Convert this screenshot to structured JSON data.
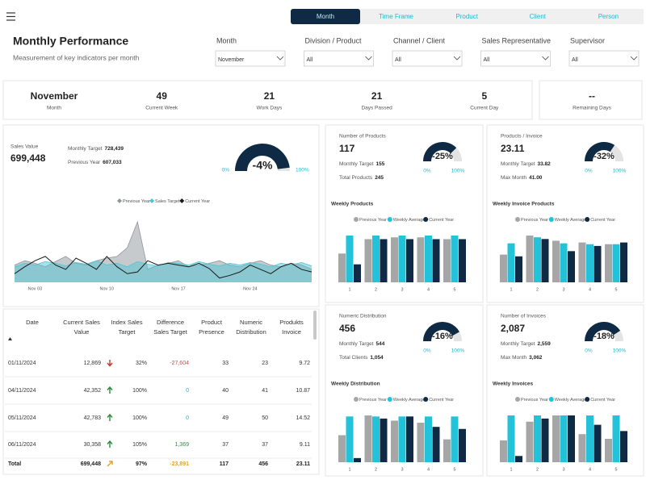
{
  "tabs": {
    "items": [
      "Month",
      "Time Frame",
      "Product",
      "Client",
      "Person"
    ],
    "active": 0
  },
  "header": {
    "title": "Monthly Performance",
    "subtitle": "Measurement of key indicators per month"
  },
  "filters": [
    {
      "label": "Month",
      "value": "November"
    },
    {
      "label": "Division / Product",
      "value": "All"
    },
    {
      "label": "Channel / Client",
      "value": "All"
    },
    {
      "label": "Sales Representative",
      "value": "All"
    },
    {
      "label": "Supervisor",
      "value": "All"
    }
  ],
  "kpis": [
    {
      "value": "November",
      "label": "Month"
    },
    {
      "value": 49,
      "label": "Current Week"
    },
    {
      "value": 21,
      "label": "Work Days"
    },
    {
      "value": 21,
      "label": "Days Passed"
    },
    {
      "value": 5,
      "label": "Current Day"
    },
    {
      "value": "--",
      "label": "Remaining Days"
    }
  ],
  "sales": {
    "label": "Sales Value",
    "value": {
      "value": 699448,
      "label": "699,448"
    },
    "target_label": "Monthly Target",
    "target": {
      "value": 728439,
      "label": "728,439"
    },
    "previous_label": "Previous Year",
    "previous": {
      "value": 607033,
      "label": "607,033"
    },
    "gauge": {
      "delta": "-4%",
      "min": "0%",
      "max": "100%"
    },
    "chart": {
      "type": "line",
      "categories": [
        null,
        null,
        "Nov 03",
        null,
        null,
        null,
        null,
        null,
        null,
        "Nov 10",
        null,
        null,
        null,
        null,
        null,
        null,
        "Nov 17",
        null,
        null,
        null,
        null,
        null,
        null,
        "Nov 24",
        null,
        null,
        null,
        null,
        null,
        null
      ],
      "series": [
        {
          "name": "Previous Year",
          "color": "#8f969c",
          "kind": "area",
          "values": [
            20,
            25,
            22,
            18,
            24,
            30,
            22,
            20,
            25,
            28,
            30,
            40,
            70,
            15,
            20,
            22,
            25,
            18,
            20,
            22,
            25,
            20,
            18,
            22,
            25,
            20,
            18,
            22,
            20,
            15
          ]
        },
        {
          "name": "Sales Target",
          "color": "#4fc3d3",
          "kind": "area",
          "values": [
            18,
            22,
            20,
            24,
            22,
            19,
            23,
            21,
            25,
            20,
            22,
            18,
            24,
            21,
            19,
            23,
            22,
            20,
            24,
            21,
            19,
            22,
            20,
            23,
            21,
            18,
            22,
            20,
            23,
            19
          ]
        },
        {
          "name": "Current Year",
          "color": "#1a1a1a",
          "kind": "line",
          "values": [
            10,
            18,
            25,
            30,
            20,
            15,
            28,
            22,
            15,
            30,
            18,
            10,
            12,
            25,
            20,
            22,
            20,
            18,
            22,
            16,
            5,
            8,
            12,
            20,
            15,
            10,
            18,
            22,
            15,
            12
          ]
        }
      ]
    }
  },
  "cards": [
    {
      "title": "Number of Products",
      "value": 117,
      "target_label": "Monthly Target",
      "target": 155,
      "extra_label": "Total Products",
      "extra": 245,
      "gauge": {
        "delta": "-25%",
        "min": "0%",
        "max": "100%"
      },
      "chart": {
        "type": "bar",
        "title": "Weekly Products",
        "categories": [
          1,
          2,
          3,
          4,
          5
        ],
        "series": [
          {
            "name": "Previous Year",
            "color": "#a6a6a6",
            "values": [
              32,
              48,
              50,
              50,
              48
            ]
          },
          {
            "name": "Weekly Average",
            "color": "#22c3d8",
            "values": [
              52,
              52,
              52,
              52,
              52
            ]
          },
          {
            "name": "Current Year",
            "color": "#0f2a44",
            "values": [
              20,
              48,
              48,
              48,
              48
            ]
          }
        ]
      }
    },
    {
      "title": "Products / Invoice",
      "value": 23.11,
      "target_label": "Monthly Target",
      "target": 33.82,
      "extra_label": "Max Month",
      "extra": {
        "value": 41,
        "label": "41.00"
      },
      "gauge": {
        "delta": "-32%",
        "min": "0%",
        "max": "100%"
      },
      "chart": {
        "type": "bar",
        "title": "Weekly Invoice Products",
        "categories": [
          1,
          2,
          3,
          4,
          5
        ],
        "series": [
          {
            "name": "Previous Year",
            "color": "#a6a6a6",
            "values": [
              32,
              54,
              48,
              46,
              44
            ]
          },
          {
            "name": "Weekly Average",
            "color": "#22c3d8",
            "values": [
              45,
              52,
              45,
              44,
              44
            ]
          },
          {
            "name": "Current Year",
            "color": "#0f2a44",
            "values": [
              30,
              50,
              36,
              42,
              46
            ]
          }
        ]
      }
    },
    {
      "title": "Numeric Distribution",
      "value": 456,
      "target_label": "Monthly Target",
      "target": 544,
      "extra_label": "Total Clients",
      "extra": {
        "value": 1054,
        "label": "1,054"
      },
      "gauge": {
        "delta": "-16%",
        "min": "0%",
        "max": "100%"
      },
      "chart": {
        "type": "bar",
        "title": "Weekly Distribution",
        "categories": [
          1,
          2,
          3,
          4,
          5
        ],
        "series": [
          {
            "name": "Previous Year",
            "color": "#a6a6a6",
            "values": [
              26,
              45,
              40,
              38,
              22
            ]
          },
          {
            "name": "Weekly Average",
            "color": "#22c3d8",
            "values": [
              44,
              44,
              44,
              44,
              44
            ]
          },
          {
            "name": "Current Year",
            "color": "#0f2a44",
            "values": [
              4,
              42,
              44,
              34,
              32
            ]
          }
        ]
      }
    },
    {
      "title": "Number of Invoices",
      "value": {
        "value": 2087,
        "label": "2,087"
      },
      "target_label": "Monthly Target",
      "target": {
        "value": 2559,
        "label": "2,559"
      },
      "extra_label": "Max Month",
      "extra": {
        "value": 3062,
        "label": "3,062"
      },
      "gauge": {
        "delta": "-18%",
        "min": "0%",
        "max": "100%"
      },
      "chart": {
        "type": "bar",
        "title": "Weekly Invoices",
        "categories": [
          1,
          2,
          3,
          4,
          5
        ],
        "series": [
          {
            "name": "Previous Year",
            "color": "#a6a6a6",
            "values": [
              28,
              52,
              60,
              36,
              30
            ]
          },
          {
            "name": "Weekly Average",
            "color": "#22c3d8",
            "values": [
              60,
              60,
              60,
              60,
              60
            ]
          },
          {
            "name": "Current Year",
            "color": "#0f2a44",
            "values": [
              8,
              56,
              60,
              48,
              40
            ]
          }
        ]
      }
    }
  ],
  "table": {
    "columns": [
      [
        "Date"
      ],
      [
        "Current Sales",
        "Value"
      ],
      [
        "Index Sales",
        "Target"
      ],
      [
        "Difference",
        "Sales Target"
      ],
      [
        "Product",
        "Presence"
      ],
      [
        "Numeric",
        "Distribution"
      ],
      [
        "Produkts",
        "Invoice"
      ]
    ],
    "rows": [
      [
        "01/11/2024",
        "12,869",
        "32%",
        "-27,604",
        "33",
        "23",
        "9.72"
      ],
      [
        "04/11/2024",
        "42,352",
        "100%",
        "0",
        "40",
        "41",
        "10.87"
      ],
      [
        "05/11/2024",
        "42,783",
        "100%",
        "0",
        "49",
        "50",
        "14.52"
      ],
      [
        "06/11/2024",
        "30,358",
        "105%",
        "1,369",
        "37",
        "37",
        "9.11"
      ]
    ],
    "total": [
      "Total",
      "699,448",
      "97%",
      "-23,891",
      "117",
      "456",
      "23.11"
    ]
  }
}
